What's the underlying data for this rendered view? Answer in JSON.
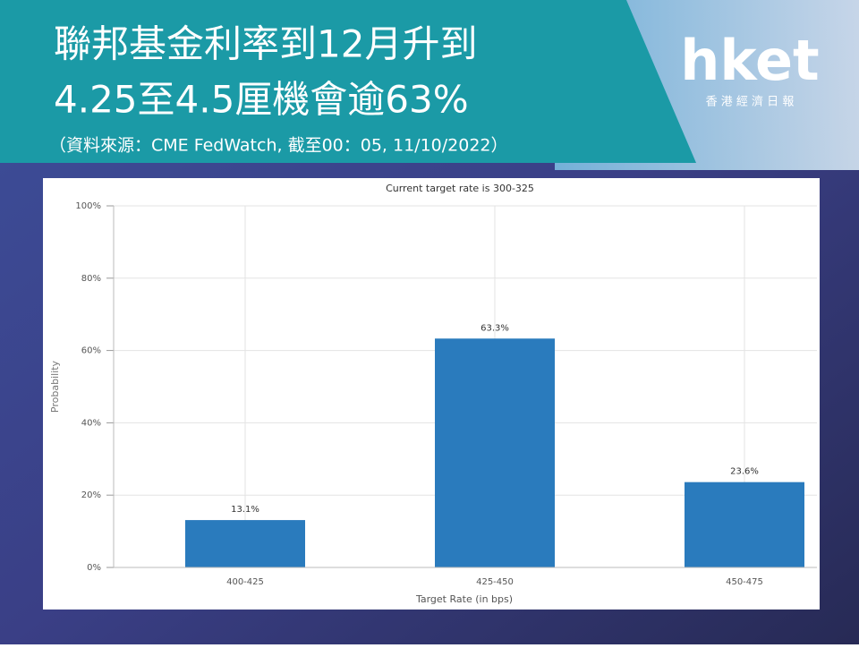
{
  "header": {
    "title_lines": [
      "聯邦基金利率到12月升到",
      "4.25至4.5厘機會逾63%"
    ],
    "source": "（資料來源：CME FedWatch, 截至00：05, 11/10/2022）"
  },
  "logo": {
    "brand": "hket",
    "subtitle": "香 港 經 濟 日 報"
  },
  "chart_data": {
    "type": "bar",
    "title": "Current target rate is 300-325",
    "x_label": "Target Rate (in bps)",
    "y_label": "Probability",
    "categories": [
      "400-425",
      "425-450",
      "450-475"
    ],
    "values": [
      13.1,
      63.3,
      23.6
    ],
    "value_labels": [
      "13.1%",
      "63.3%",
      "23.6%"
    ],
    "color": "#2a7bbd",
    "ylim": [
      0,
      100
    ],
    "yticks": [
      {
        "value": 0,
        "label": "0%"
      },
      {
        "value": 20,
        "label": "20%"
      },
      {
        "value": 40,
        "label": "40%"
      },
      {
        "value": 60,
        "label": "60%"
      },
      {
        "value": 80,
        "label": "80%"
      },
      {
        "value": 100,
        "label": "100%"
      }
    ],
    "grid": true
  }
}
